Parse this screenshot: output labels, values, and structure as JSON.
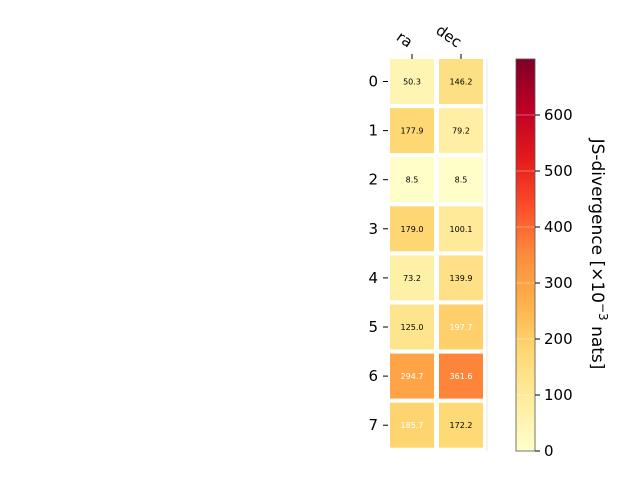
{
  "chart_data": {
    "type": "heatmap",
    "columns": [
      "ra",
      "dec"
    ],
    "rows": [
      "0",
      "1",
      "2",
      "3",
      "4",
      "5",
      "6",
      "7"
    ],
    "values": [
      [
        50.3,
        146.2
      ],
      [
        177.9,
        79.2
      ],
      [
        8.5,
        8.5
      ],
      [
        179.0,
        100.1
      ],
      [
        73.2,
        139.9
      ],
      [
        125.0,
        197.7
      ],
      [
        294.7,
        361.6
      ],
      [
        185.7,
        172.2
      ]
    ],
    "cell_labels": [
      [
        "50.3",
        "146.2"
      ],
      [
        "177.9",
        "79.2"
      ],
      [
        "8.5",
        "8.5"
      ],
      [
        "179.0",
        "100.1"
      ],
      [
        "73.2",
        "139.9"
      ],
      [
        "125.0",
        "197.7"
      ],
      [
        "294.7",
        "361.6"
      ],
      [
        "185.7",
        "172.2"
      ]
    ],
    "white_text_cells": [
      [
        5,
        1
      ],
      [
        6,
        0
      ],
      [
        6,
        1
      ],
      [
        7,
        0
      ]
    ],
    "colormap": "YlOrRd",
    "colorbar": {
      "label_main": "JS-divergence [×10",
      "label_exp": "−3",
      "label_unit": " nats]",
      "range": [
        0,
        700
      ],
      "ticks": [
        "0",
        "100",
        "200",
        "300",
        "400",
        "500",
        "600"
      ],
      "tick_values": [
        0,
        100,
        200,
        300,
        400,
        500,
        600
      ]
    },
    "grid": false
  }
}
